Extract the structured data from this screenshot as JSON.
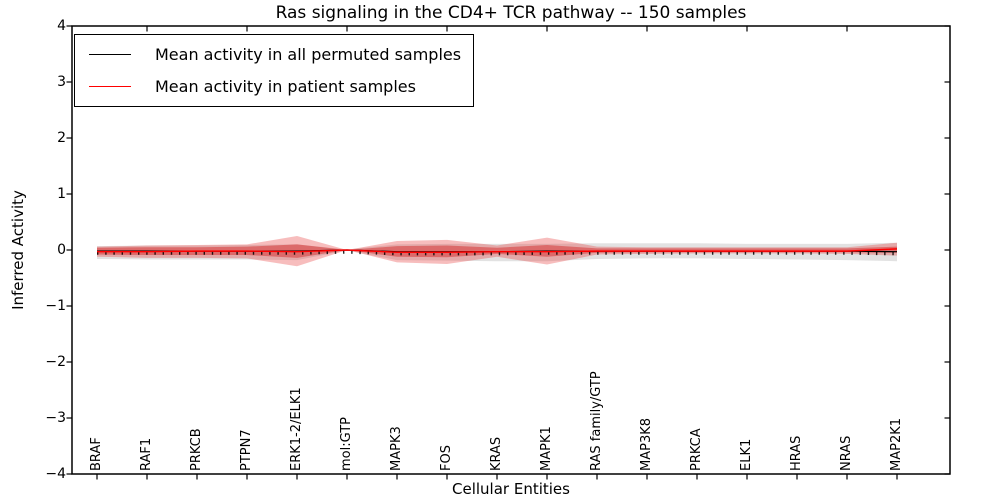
{
  "figure": {
    "background": "#ffffff",
    "frame_color": "#000000"
  },
  "chart_data": {
    "type": "line",
    "title": "Ras signaling in the CD4+ TCR pathway -- 150 samples",
    "xlabel": "Cellular Entities",
    "ylabel": "Inferred Activity",
    "ylim": [
      -4,
      4
    ],
    "grid": false,
    "legend_position": "upper left",
    "y_tick_values": [
      4,
      3,
      2,
      1,
      0,
      -1,
      -2,
      -3,
      -4
    ],
    "y_tick_labels": [
      "4",
      "3",
      "2",
      "1",
      "0",
      "−1",
      "−2",
      "−3",
      "−4"
    ],
    "categories": [
      "BRAF",
      "RAF1",
      "PRKCB",
      "PTPN7",
      "ERK1-2/ELK1",
      "mol:GTP",
      "MAPK3",
      "FOS",
      "KRAS",
      "MAPK1",
      "RAS family/GTP",
      "MAP3K8",
      "PRKCA",
      "ELK1",
      "HRAS",
      "NRAS",
      "MAP2K1"
    ],
    "series": [
      {
        "name": "Mean activity in all permuted samples",
        "color": "#000000",
        "values": [
          -0.02,
          -0.02,
          -0.02,
          -0.02,
          -0.02,
          0.0,
          -0.03,
          -0.03,
          -0.03,
          -0.02,
          -0.02,
          -0.02,
          -0.02,
          -0.02,
          -0.02,
          -0.02,
          -0.03
        ]
      },
      {
        "name": "Mean activity in patient samples",
        "color": "#ff0000",
        "values": [
          -0.03,
          -0.03,
          -0.02,
          -0.02,
          -0.03,
          0.0,
          -0.04,
          -0.04,
          -0.03,
          -0.03,
          -0.02,
          -0.02,
          -0.02,
          -0.02,
          -0.02,
          -0.02,
          0.02
        ]
      }
    ],
    "bands": [
      {
        "name": "permuted-sample-range",
        "color": "rgba(150,150,150,0.28)",
        "upper": [
          0.07,
          0.08,
          0.08,
          0.09,
          0.1,
          0.01,
          0.1,
          0.11,
          0.11,
          0.11,
          0.12,
          0.12,
          0.12,
          0.11,
          0.11,
          0.11,
          0.13
        ],
        "lower": [
          -0.16,
          -0.17,
          -0.17,
          -0.17,
          -0.18,
          -0.01,
          -0.18,
          -0.19,
          -0.2,
          -0.2,
          -0.16,
          -0.15,
          -0.15,
          -0.16,
          -0.17,
          -0.18,
          -0.2
        ]
      },
      {
        "name": "patient-sample-outer-range",
        "color": "rgba(230,55,55,0.33)",
        "upper": [
          0.06,
          0.08,
          0.09,
          0.1,
          0.25,
          0.0,
          0.16,
          0.18,
          0.08,
          0.22,
          0.06,
          0.05,
          0.05,
          0.05,
          0.05,
          0.05,
          0.13
        ],
        "lower": [
          -0.12,
          -0.14,
          -0.14,
          -0.15,
          -0.29,
          0.0,
          -0.22,
          -0.25,
          -0.12,
          -0.26,
          -0.08,
          -0.07,
          -0.06,
          -0.06,
          -0.06,
          -0.07,
          -0.1
        ]
      },
      {
        "name": "patient-sample-inner-range",
        "color": "rgba(213,38,38,0.48)",
        "upper": [
          0.04,
          0.05,
          0.05,
          0.06,
          0.1,
          0.0,
          0.07,
          0.08,
          0.04,
          0.09,
          0.03,
          0.03,
          0.03,
          0.03,
          0.03,
          0.03,
          0.06
        ],
        "lower": [
          -0.08,
          -0.09,
          -0.09,
          -0.09,
          -0.14,
          0.0,
          -0.12,
          -0.13,
          -0.07,
          -0.12,
          -0.05,
          -0.04,
          -0.04,
          -0.04,
          -0.04,
          -0.04,
          -0.05
        ]
      }
    ]
  }
}
